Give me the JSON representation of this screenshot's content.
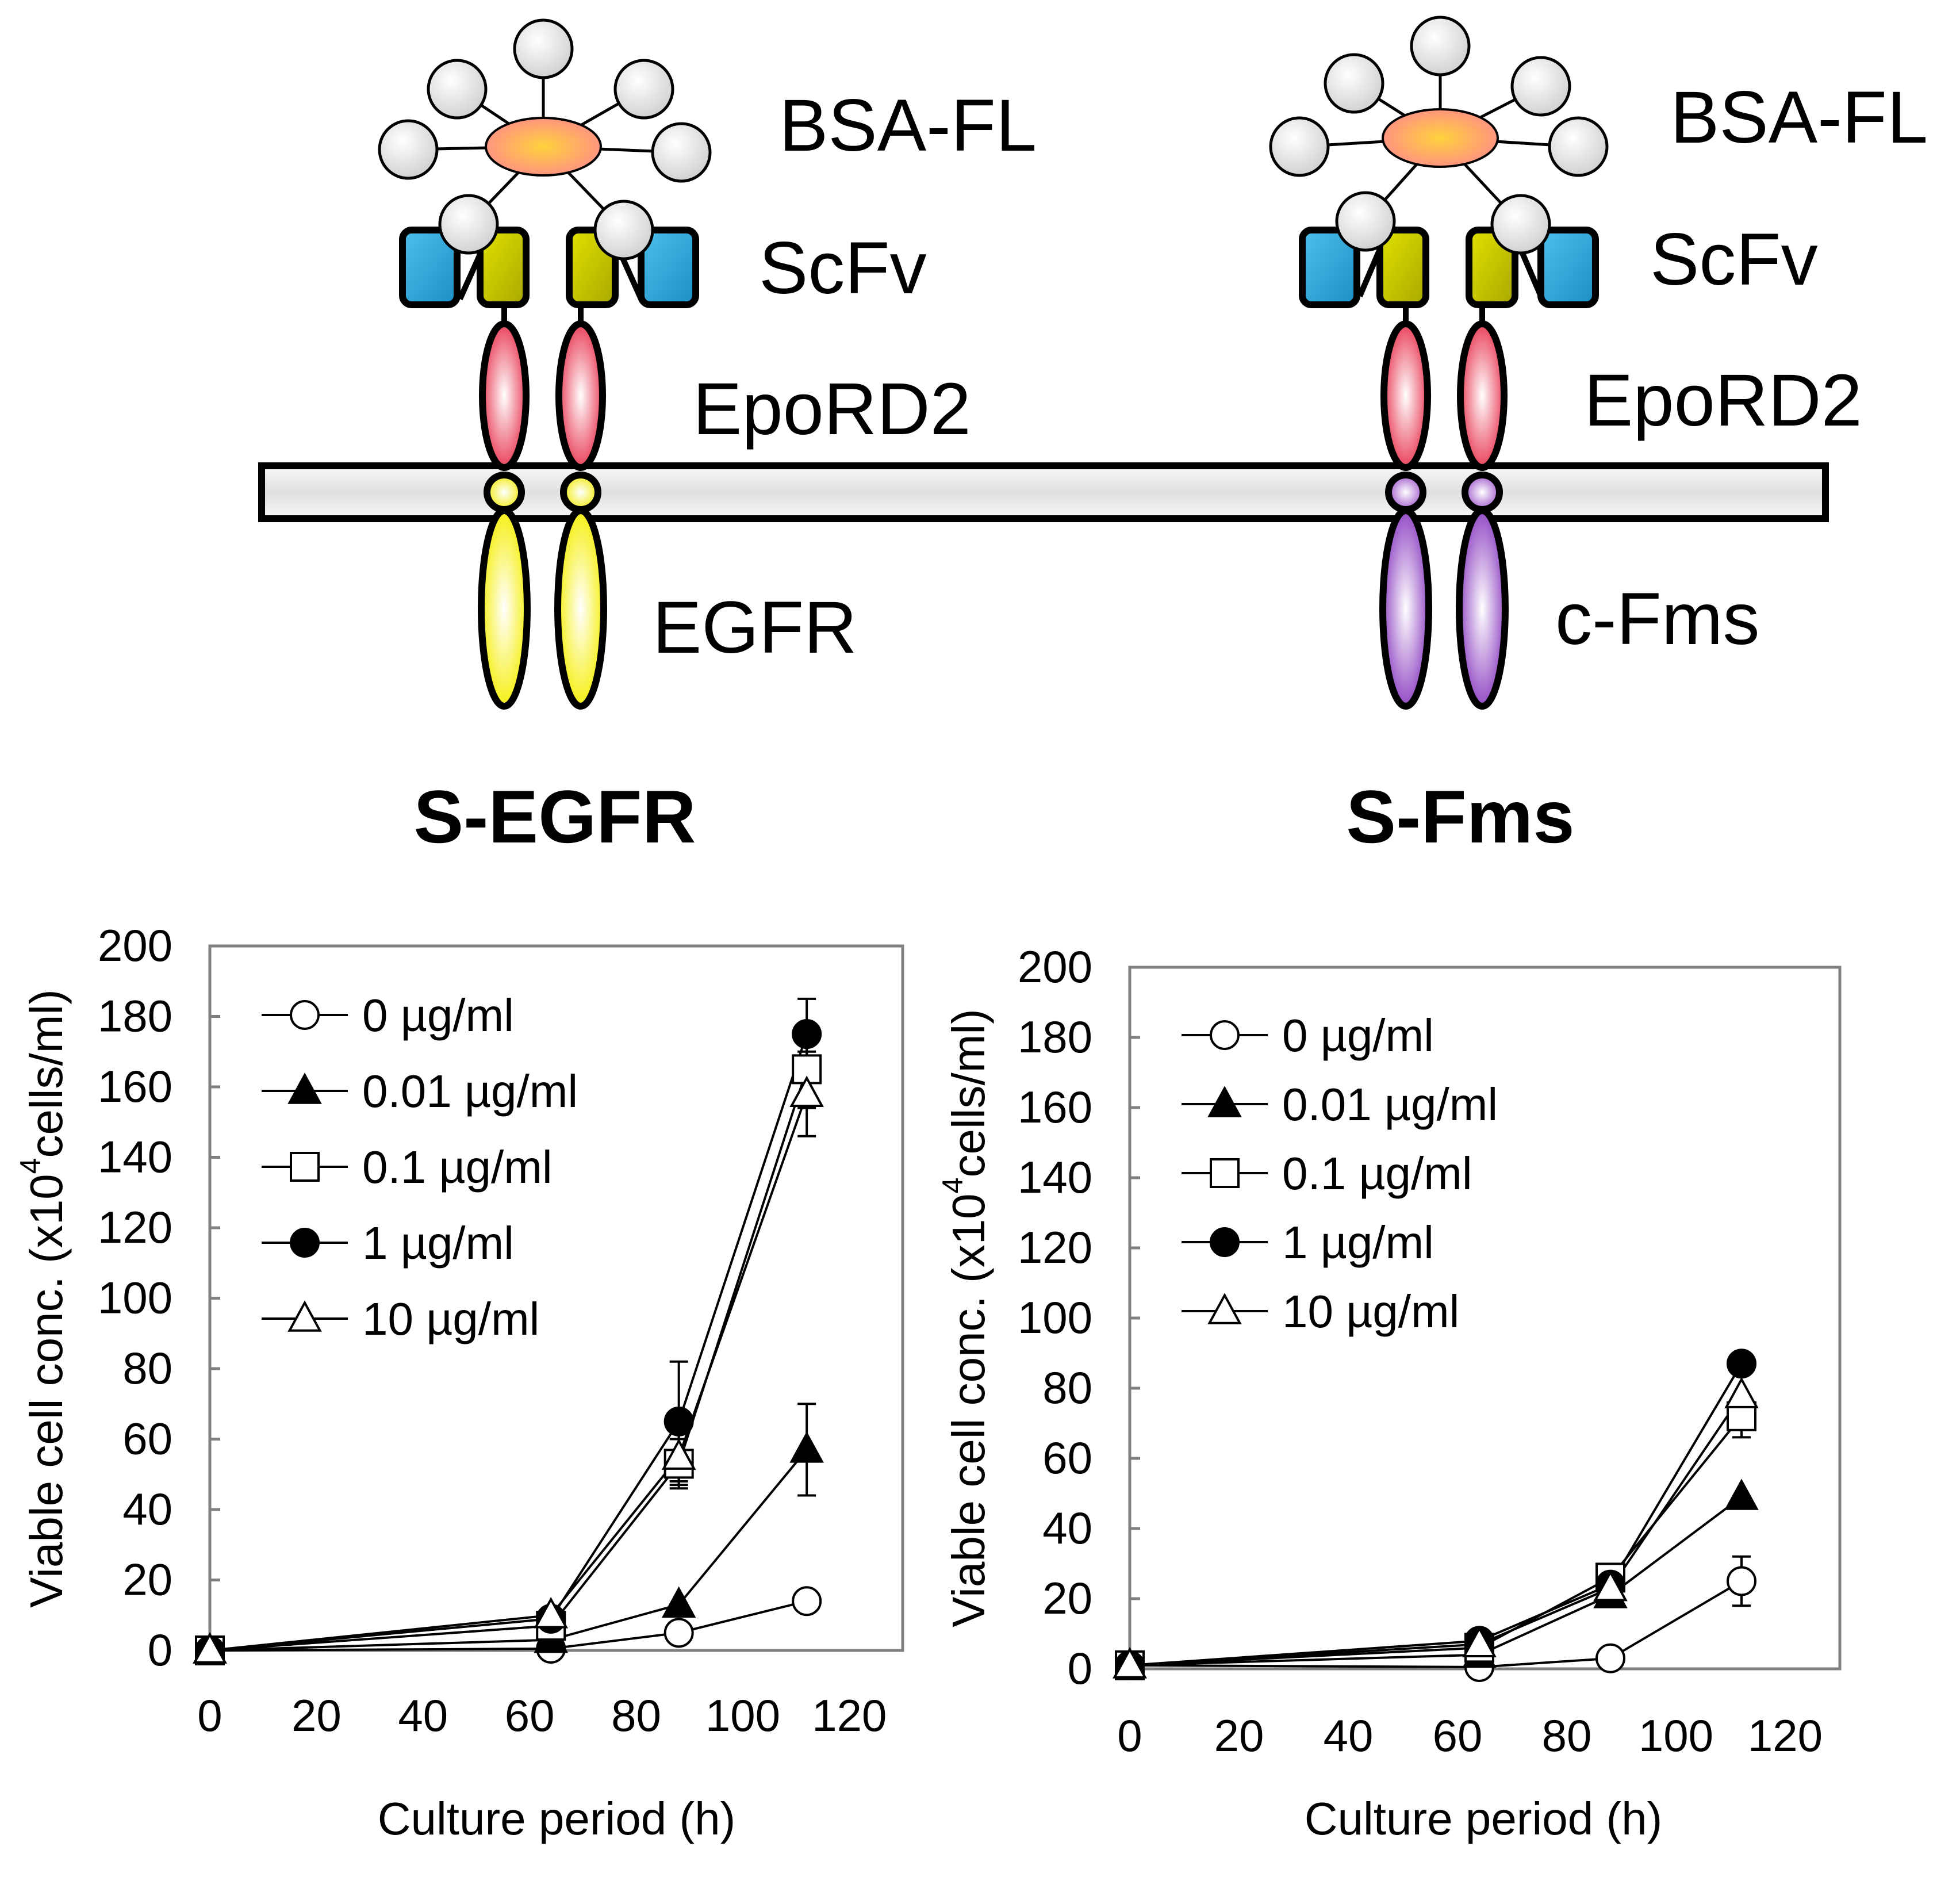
{
  "colors": {
    "membrane_fill": "#d8d8d8",
    "bead": "#d9d9d9",
    "core": "#ff9a80",
    "core_center": "#ffd23c",
    "scfv_blue": "#2aa6d8",
    "scfv_yellow": "#c8c800",
    "epo": "#e8344e",
    "egfr": "#f5f000",
    "fms": "#9040c0",
    "axis": "#808080"
  },
  "diagram": {
    "left": {
      "ligand": "BSA-FL",
      "scfv": "ScFv",
      "epo": "EpoRD2",
      "receptor": "EGFR",
      "title": "S-EGFR"
    },
    "right": {
      "ligand": "BSA-FL",
      "scfv": "ScFv",
      "epo": "EpoRD2",
      "receptor": "c-Fms",
      "title": "S-Fms"
    }
  },
  "axis_labels": {
    "y_main": "Viable cell conc. (x10",
    "y_sup": "4",
    "y_rest": "cells/ml)",
    "x": "Culture period (h)"
  },
  "chart_data": [
    {
      "type": "line",
      "xlabel": "Culture period (h)",
      "ylabel": "Viable cell conc. (x10^4 cells/ml)",
      "xlim": [
        0,
        130
      ],
      "ylim": [
        0,
        200
      ],
      "xticks": [
        0,
        20,
        40,
        60,
        80,
        100,
        120
      ],
      "yticks": [
        0,
        20,
        40,
        60,
        80,
        100,
        120,
        140,
        160,
        180,
        200
      ],
      "legend_position": "top-left",
      "x": [
        0,
        64,
        88,
        112
      ],
      "series": [
        {
          "name": "0 µg/ml",
          "marker": "circle-open",
          "values": [
            0,
            0.5,
            5,
            14
          ],
          "errors": [
            0,
            0,
            0,
            0
          ]
        },
        {
          "name": "0.01 µg/ml",
          "marker": "triangle-filled",
          "values": [
            0,
            3,
            13,
            57
          ],
          "errors": [
            0,
            0,
            0,
            13
          ]
        },
        {
          "name": "0.1 µg/ml",
          "marker": "square-open",
          "values": [
            0,
            7,
            53,
            165
          ],
          "errors": [
            0,
            0,
            7,
            11
          ]
        },
        {
          "name": "1 µg/ml",
          "marker": "circle-filled",
          "values": [
            0,
            9,
            65,
            175
          ],
          "errors": [
            0,
            0,
            17,
            10
          ]
        },
        {
          "name": "10 µg/ml",
          "marker": "triangle-open",
          "values": [
            0,
            10,
            55,
            158
          ],
          "errors": [
            0,
            0,
            8,
            12
          ]
        }
      ]
    },
    {
      "type": "line",
      "xlabel": "Culture period (h)",
      "ylabel": "Viable cell conc. (x10^4 cells/ml)",
      "xlim": [
        0,
        130
      ],
      "ylim": [
        0,
        200
      ],
      "xticks": [
        0,
        20,
        40,
        60,
        80,
        100,
        120
      ],
      "yticks": [
        0,
        20,
        40,
        60,
        80,
        100,
        120,
        140,
        160,
        180,
        200
      ],
      "legend_position": "top-left",
      "x": [
        0,
        64,
        88,
        112
      ],
      "series": [
        {
          "name": "0 µg/ml",
          "marker": "circle-open",
          "values": [
            1,
            0.5,
            3,
            25
          ],
          "errors": [
            0,
            0,
            0,
            7
          ]
        },
        {
          "name": "0.01 µg/ml",
          "marker": "triangle-filled",
          "values": [
            1,
            4,
            21,
            49
          ],
          "errors": [
            0,
            0,
            0,
            0
          ]
        },
        {
          "name": "0.1 µg/ml",
          "marker": "square-open",
          "values": [
            1,
            6,
            26,
            72
          ],
          "errors": [
            0,
            0,
            0,
            6
          ]
        },
        {
          "name": "1 µg/ml",
          "marker": "circle-filled",
          "values": [
            1,
            8,
            24,
            87
          ],
          "errors": [
            0,
            0,
            0,
            0
          ]
        },
        {
          "name": "10 µg/ml",
          "marker": "triangle-open",
          "values": [
            1,
            7,
            23,
            78
          ],
          "errors": [
            0,
            0,
            0,
            0
          ]
        }
      ]
    }
  ]
}
